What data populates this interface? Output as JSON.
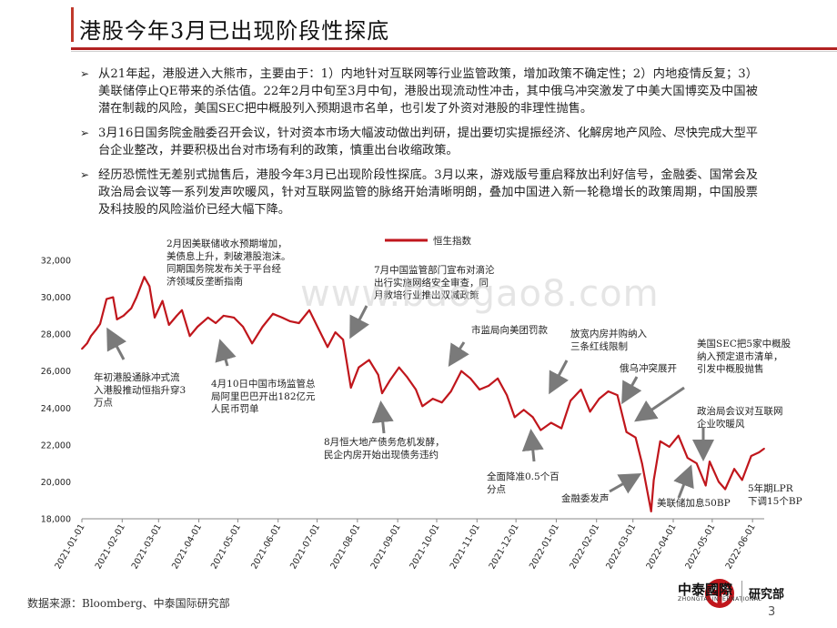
{
  "title": "港股今年3月已出现阶段性探底",
  "bullets": [
    "从21年起，港股进入大熊市，主要由于：1）内地针对互联网等行业监管政策，增加政策不确定性；2）内地疫情反复；3）美联储停止QE带来的杀估值。22年2月中旬至3月中旬，港股出现流动性冲击，其中俄乌冲突激发了中美大国博奕及中国被潜在制裁的风险，美国SEC把中概股列入预期退市名单，也引发了外资对港股的非理性抛售。",
    "3月16日国务院金融委召开会议，针对资本市场大幅波动做出判研，提出要切实提振经济、化解房地产风险、尽快完成大型平台企业整改，并要积极出台对市场有利的政策，慎重出台收缩政策。",
    "经历恐慌性无差别式抛售后，港股今年3月已出现阶段性探底。3月以来，游戏版号重启释放出利好信号，金融委、国常会及政治局会议等一系列发声吹暖风，针对互联网监管的脉络开始清晰明朗，叠加中国进入新一轮稳增长的政策周期，中国股票及科技股的风险溢价已经大幅下降。"
  ],
  "bullet_marker": "➢",
  "source_note": "数据来源：Bloomberg、中泰国际研究部",
  "page_number": "3",
  "watermark": "www.baogao8.com",
  "logo": {
    "cn": "中泰國際",
    "en": "ZHONGTAI INTERNATIONAL",
    "dept": "研究部"
  },
  "colors": {
    "series": "#c0161c",
    "accent": "#b22222"
  },
  "chart_data": {
    "type": "line",
    "legend": "恒生指数",
    "legend_position": "top-center",
    "ylim": [
      18000,
      32000
    ],
    "yticks": [
      "32,000",
      "30,000",
      "28,000",
      "26,000",
      "24,000",
      "22,000",
      "20,000",
      "18,000"
    ],
    "xticks": [
      "2021-01-01",
      "2021-02-01",
      "2021-03-01",
      "2021-04-01",
      "2021-05-01",
      "2021-06-01",
      "2021-07-01",
      "2021-08-01",
      "2021-09-01",
      "2021-10-01",
      "2021-11-01",
      "2021-12-01",
      "2022-01-01",
      "2022-02-01",
      "2022-03-01",
      "2022-04-01",
      "2022-05-01",
      "2022-06-01"
    ],
    "x_start": "2021-01-01",
    "x_end": "2022-06-10",
    "series": [
      {
        "name": "恒生指数",
        "points": [
          [
            "2021-01-01",
            27200
          ],
          [
            "2021-01-05",
            27500
          ],
          [
            "2021-01-08",
            27900
          ],
          [
            "2021-01-12",
            28250
          ],
          [
            "2021-01-15",
            28550
          ],
          [
            "2021-01-20",
            29900
          ],
          [
            "2021-01-25",
            30000
          ],
          [
            "2021-01-28",
            28800
          ],
          [
            "2021-02-02",
            29000
          ],
          [
            "2021-02-08",
            29400
          ],
          [
            "2021-02-12",
            30000
          ],
          [
            "2021-02-18",
            31100
          ],
          [
            "2021-02-22",
            30600
          ],
          [
            "2021-02-26",
            28900
          ],
          [
            "2021-03-04",
            29800
          ],
          [
            "2021-03-09",
            28500
          ],
          [
            "2021-03-15",
            29000
          ],
          [
            "2021-03-19",
            29300
          ],
          [
            "2021-03-25",
            27900
          ],
          [
            "2021-03-31",
            28400
          ],
          [
            "2021-04-08",
            28900
          ],
          [
            "2021-04-14",
            28600
          ],
          [
            "2021-04-20",
            29000
          ],
          [
            "2021-04-28",
            28900
          ],
          [
            "2021-05-05",
            28400
          ],
          [
            "2021-05-12",
            27500
          ],
          [
            "2021-05-20",
            28400
          ],
          [
            "2021-05-28",
            29100
          ],
          [
            "2021-06-04",
            28900
          ],
          [
            "2021-06-10",
            28700
          ],
          [
            "2021-06-17",
            28600
          ],
          [
            "2021-06-25",
            29300
          ],
          [
            "2021-07-02",
            28300
          ],
          [
            "2021-07-09",
            27300
          ],
          [
            "2021-07-15",
            28100
          ],
          [
            "2021-07-21",
            27700
          ],
          [
            "2021-07-27",
            25100
          ],
          [
            "2021-08-02",
            26200
          ],
          [
            "2021-08-10",
            26600
          ],
          [
            "2021-08-17",
            25800
          ],
          [
            "2021-08-20",
            24800
          ],
          [
            "2021-08-26",
            25500
          ],
          [
            "2021-09-02",
            26200
          ],
          [
            "2021-09-08",
            25700
          ],
          [
            "2021-09-15",
            25000
          ],
          [
            "2021-09-20",
            24100
          ],
          [
            "2021-09-28",
            24500
          ],
          [
            "2021-10-05",
            24300
          ],
          [
            "2021-10-12",
            24900
          ],
          [
            "2021-10-20",
            26000
          ],
          [
            "2021-10-27",
            25600
          ],
          [
            "2021-11-03",
            25000
          ],
          [
            "2021-11-10",
            25200
          ],
          [
            "2021-11-17",
            25600
          ],
          [
            "2021-11-24",
            24700
          ],
          [
            "2021-11-30",
            23500
          ],
          [
            "2021-12-07",
            23900
          ],
          [
            "2021-12-14",
            23500
          ],
          [
            "2021-12-20",
            22800
          ],
          [
            "2021-12-28",
            23200
          ],
          [
            "2022-01-05",
            22900
          ],
          [
            "2022-01-12",
            24400
          ],
          [
            "2022-01-20",
            25000
          ],
          [
            "2022-01-27",
            23800
          ],
          [
            "2022-02-03",
            24500
          ],
          [
            "2022-02-10",
            24900
          ],
          [
            "2022-02-17",
            24700
          ],
          [
            "2022-02-24",
            22700
          ],
          [
            "2022-03-03",
            22400
          ],
          [
            "2022-03-08",
            21000
          ],
          [
            "2022-03-15",
            18400
          ],
          [
            "2022-03-17",
            20100
          ],
          [
            "2022-03-22",
            22200
          ],
          [
            "2022-03-29",
            21900
          ],
          [
            "2022-04-05",
            22500
          ],
          [
            "2022-04-12",
            21300
          ],
          [
            "2022-04-19",
            21000
          ],
          [
            "2022-04-26",
            19800
          ],
          [
            "2022-04-29",
            21100
          ],
          [
            "2022-05-06",
            20000
          ],
          [
            "2022-05-11",
            19600
          ],
          [
            "2022-05-18",
            20700
          ],
          [
            "2022-05-24",
            20100
          ],
          [
            "2022-05-31",
            21400
          ],
          [
            "2022-06-06",
            21600
          ],
          [
            "2022-06-10",
            21800
          ]
        ]
      }
    ],
    "annotations": [
      {
        "lines": [
          "2月因美联储收水预期增加，",
          "美债息上升，刺破港股泡沫。",
          "同期国务院发布关于平台经",
          "济领域反垄断指南"
        ]
      },
      {
        "lines": [
          "年初港股通脉冲式流",
          "入港股推动恒指升穿3",
          "万点"
        ]
      },
      {
        "lines": [
          "4月10日中国市场监管总",
          "局阿里巴巴开出182亿元",
          "人民币罚单"
        ]
      },
      {
        "lines": [
          "7月中国监管部门宣布对滴沦",
          "出行实施网络安全审查，同",
          "月教培行业推出双减政策"
        ]
      },
      {
        "lines": [
          "8月恒大地产债务危机发酵，",
          "民企内房开始出现债务违约"
        ]
      },
      {
        "lines": [
          "市监局向美团罚款"
        ]
      },
      {
        "lines": [
          "全面降准0.5个百",
          "分点"
        ]
      },
      {
        "lines": [
          "放宽内房并购纳入",
          "三条红线限制"
        ]
      },
      {
        "lines": [
          "金融委发声"
        ]
      },
      {
        "lines": [
          "俄乌冲突展开"
        ]
      },
      {
        "lines": [
          "美国SEC把5家中概股",
          "纳入预定退市清单，",
          "引发中概股抛售"
        ]
      },
      {
        "lines": [
          "政治局会议对互联网",
          "企业吹暖风"
        ]
      },
      {
        "lines": [
          "美联储加息50BP"
        ]
      },
      {
        "lines": [
          "5年期LPR",
          "下调15个BP"
        ]
      }
    ]
  }
}
